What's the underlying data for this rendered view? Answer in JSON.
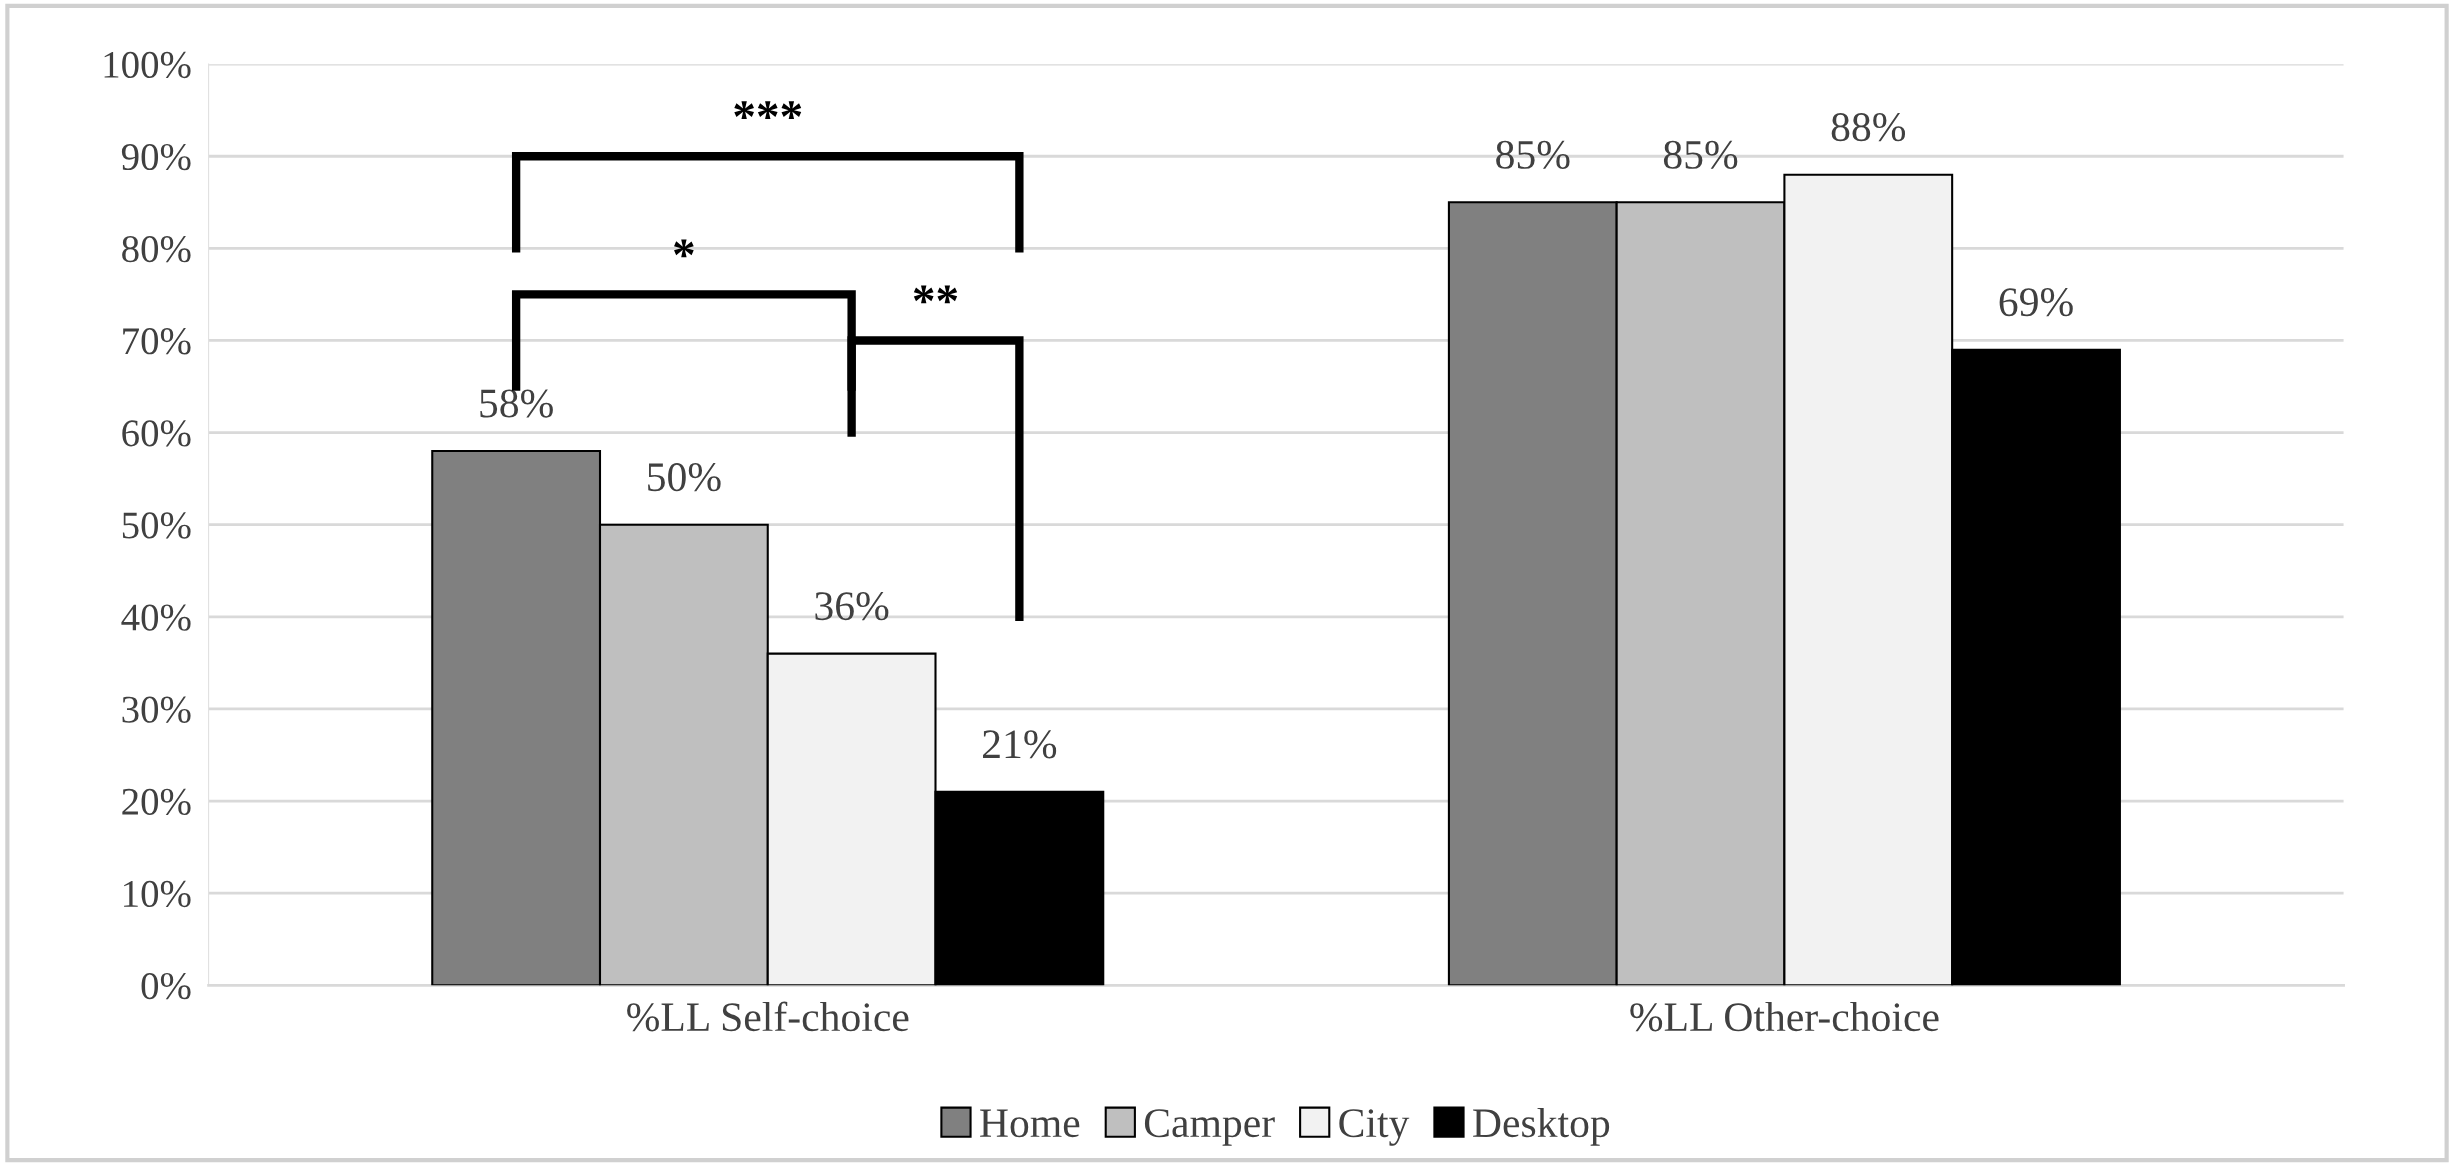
{
  "chart_data": {
    "type": "bar",
    "categories": [
      "%LL Self-choice",
      "%LL Other-choice"
    ],
    "series": [
      {
        "name": "Home",
        "color": "#808080",
        "values": [
          58,
          85
        ]
      },
      {
        "name": "Camper",
        "color": "#bfbfbf",
        "values": [
          50,
          85
        ]
      },
      {
        "name": "City",
        "color": "#f2f2f2",
        "values": [
          36,
          88
        ]
      },
      {
        "name": "Desktop",
        "color": "#000000",
        "values": [
          21,
          69
        ]
      }
    ],
    "ylim": [
      0,
      100
    ],
    "yticks": [
      {
        "value": 0,
        "label": "0%"
      },
      {
        "value": 10,
        "label": "10%"
      },
      {
        "value": 20,
        "label": "20%"
      },
      {
        "value": 30,
        "label": "30%"
      },
      {
        "value": 40,
        "label": "40%"
      },
      {
        "value": 50,
        "label": "50%"
      },
      {
        "value": 60,
        "label": "60%"
      },
      {
        "value": 70,
        "label": "70%"
      },
      {
        "value": 80,
        "label": "80%"
      },
      {
        "value": 90,
        "label": "90%"
      },
      {
        "value": 100,
        "label": "100%"
      }
    ],
    "value_labels": [
      [
        "58%",
        "85%"
      ],
      [
        "50%",
        "85%"
      ],
      [
        "36%",
        "88%"
      ],
      [
        "21%",
        "69%"
      ]
    ],
    "annotations": [
      "***",
      "*",
      "**"
    ],
    "grid": "y",
    "legend": "bottom"
  }
}
